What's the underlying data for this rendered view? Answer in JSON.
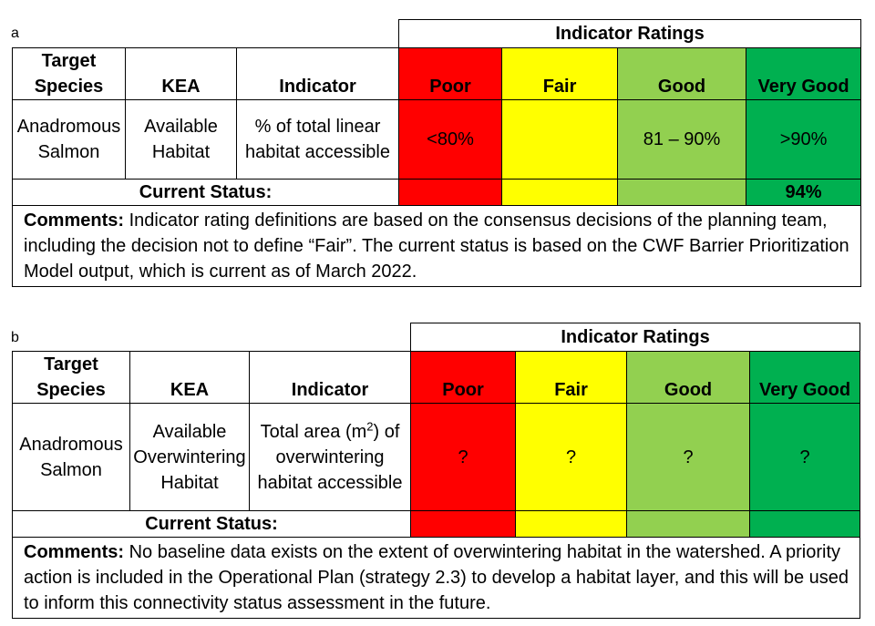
{
  "panels": [
    {
      "label": "a",
      "ratings_title": "Indicator Ratings",
      "headers": {
        "target_species": "Target Species",
        "kea": "KEA",
        "indicator": "Indicator",
        "poor": "Poor",
        "fair": "Fair",
        "good": "Good",
        "very_good": "Very Good"
      },
      "row": {
        "target_species": "Anadromous Salmon",
        "kea": "Available Habitat",
        "indicator": "% of total linear habitat accessible",
        "poor": "<80%",
        "fair": "",
        "good": "81 – 90%",
        "very_good": ">90%"
      },
      "current_status_label": "Current Status:",
      "current_status_value": "94%",
      "comments_label": "Comments:",
      "comments_text": " Indicator rating definitions are based on the consensus decisions of the planning team, including the decision not to define “Fair”. The current status is based on the CWF Barrier Prioritization Model output, which is current as of March 2022."
    },
    {
      "label": "b",
      "ratings_title": "Indicator Ratings",
      "headers": {
        "target_species": "Target Species",
        "kea": "KEA",
        "indicator": "Indicator",
        "poor": "Poor",
        "fair": "Fair",
        "good": "Good",
        "very_good": "Very Good"
      },
      "row": {
        "target_species": "Anadromous Salmon",
        "kea": "Available Overwintering Habitat",
        "indicator_pre": "Total area (m",
        "indicator_sup": "2",
        "indicator_post": ") of overwintering habitat accessible",
        "poor": "?",
        "fair": "?",
        "good": "?",
        "very_good": "?"
      },
      "current_status_label": "Current Status:",
      "current_status_value": "",
      "comments_label": "Comments:",
      "comments_text": " No baseline data exists on the extent of overwintering habitat in the watershed. A priority action is included in the Operational Plan (strategy 2.3) to develop a habitat layer, and this will be used to inform this connectivity status assessment in the future."
    }
  ],
  "colors": {
    "poor": "#ff0000",
    "fair": "#ffff00",
    "good": "#92d050",
    "very_good": "#00b050"
  }
}
